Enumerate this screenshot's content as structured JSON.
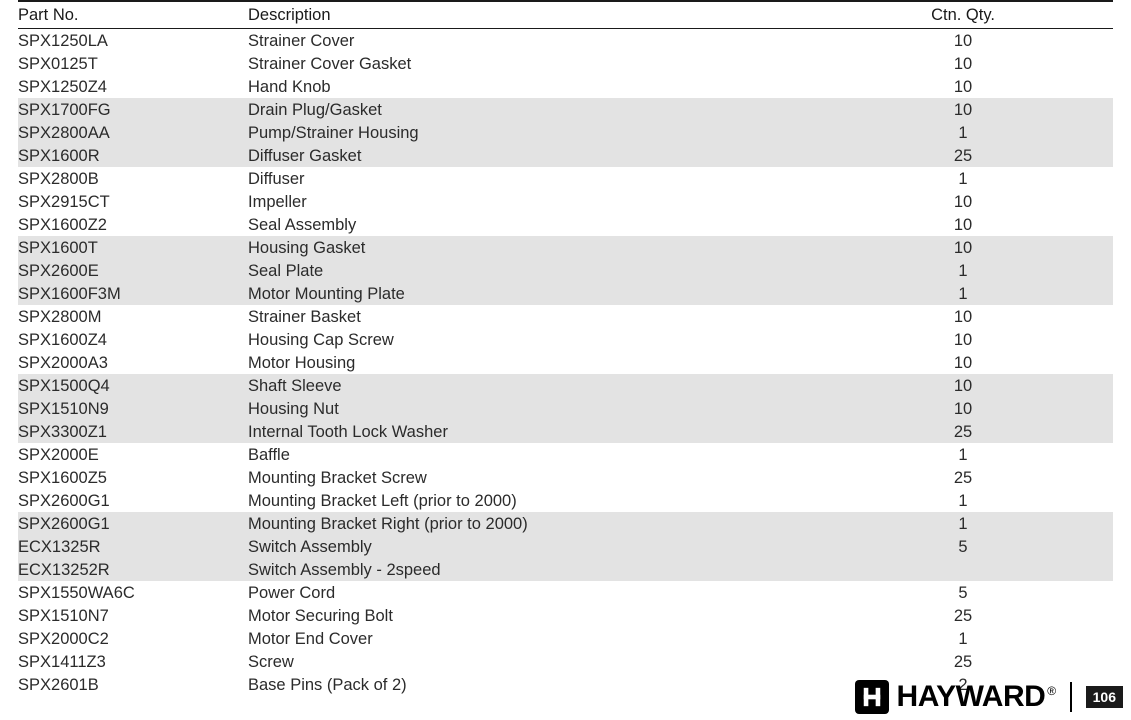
{
  "table": {
    "headers": {
      "part_no": "Part No.",
      "description": "Description",
      "ctn_qty": "Ctn. Qty."
    },
    "shade_color": "#e3e3e3",
    "border_color": "#1a1a1a",
    "text_color": "#2b2b2b",
    "font_size": 16.5,
    "rows": [
      {
        "part_no": "SPX1250LA",
        "description": "Strainer Cover",
        "ctn_qty": "10",
        "shaded": false
      },
      {
        "part_no": "SPX0125T",
        "description": "Strainer Cover Gasket",
        "ctn_qty": "10",
        "shaded": false
      },
      {
        "part_no": "SPX1250Z4",
        "description": "Hand Knob",
        "ctn_qty": "10",
        "shaded": false
      },
      {
        "part_no": "SPX1700FG",
        "description": "Drain Plug/Gasket",
        "ctn_qty": "10",
        "shaded": true
      },
      {
        "part_no": "SPX2800AA",
        "description": "Pump/Strainer Housing",
        "ctn_qty": "1",
        "shaded": true
      },
      {
        "part_no": "SPX1600R",
        "description": "Diffuser Gasket",
        "ctn_qty": "25",
        "shaded": true
      },
      {
        "part_no": "SPX2800B",
        "description": "Diffuser",
        "ctn_qty": "1",
        "shaded": false
      },
      {
        "part_no": "SPX2915CT",
        "description": "Impeller",
        "ctn_qty": "10",
        "shaded": false
      },
      {
        "part_no": "SPX1600Z2",
        "description": "Seal Assembly",
        "ctn_qty": "10",
        "shaded": false
      },
      {
        "part_no": "SPX1600T",
        "description": "Housing Gasket",
        "ctn_qty": "10",
        "shaded": true
      },
      {
        "part_no": "SPX2600E",
        "description": "Seal Plate",
        "ctn_qty": "1",
        "shaded": true
      },
      {
        "part_no": "SPX1600F3M",
        "description": "Motor Mounting Plate",
        "ctn_qty": "1",
        "shaded": true
      },
      {
        "part_no": "SPX2800M",
        "description": "Strainer Basket",
        "ctn_qty": "10",
        "shaded": false
      },
      {
        "part_no": "SPX1600Z4",
        "description": "Housing Cap Screw",
        "ctn_qty": "10",
        "shaded": false
      },
      {
        "part_no": "SPX2000A3",
        "description": "Motor Housing",
        "ctn_qty": "10",
        "shaded": false
      },
      {
        "part_no": "SPX1500Q4",
        "description": "Shaft Sleeve",
        "ctn_qty": "10",
        "shaded": true
      },
      {
        "part_no": "SPX1510N9",
        "description": "Housing Nut",
        "ctn_qty": "10",
        "shaded": true
      },
      {
        "part_no": "SPX3300Z1",
        "description": "Internal Tooth Lock Washer",
        "ctn_qty": "25",
        "shaded": true
      },
      {
        "part_no": "SPX2000E",
        "description": "Baffle",
        "ctn_qty": "1",
        "shaded": false
      },
      {
        "part_no": "SPX1600Z5",
        "description": "Mounting Bracket Screw",
        "ctn_qty": "25",
        "shaded": false
      },
      {
        "part_no": "SPX2600G1",
        "description": "Mounting Bracket Left (prior to 2000)",
        "ctn_qty": "1",
        "shaded": false
      },
      {
        "part_no": "SPX2600G1",
        "description": "Mounting Bracket Right (prior to 2000)",
        "ctn_qty": "1",
        "shaded": true
      },
      {
        "part_no": "ECX1325R",
        "description": "Switch Assembly",
        "ctn_qty": "5",
        "shaded": true
      },
      {
        "part_no": "ECX13252R",
        "description": "Switch Assembly - 2speed",
        "ctn_qty": "",
        "shaded": true
      },
      {
        "part_no": "SPX1550WA6C",
        "description": "Power Cord",
        "ctn_qty": "5",
        "shaded": false
      },
      {
        "part_no": "SPX1510N7",
        "description": "Motor Securing Bolt",
        "ctn_qty": "25",
        "shaded": false
      },
      {
        "part_no": "SPX2000C2",
        "description": "Motor End Cover",
        "ctn_qty": "1",
        "shaded": false
      },
      {
        "part_no": "SPX1411Z3",
        "description": "Screw",
        "ctn_qty": "25",
        "shaded": false
      },
      {
        "part_no": "SPX2601B",
        "description": "Base Pins (Pack of 2)",
        "ctn_qty": "2",
        "shaded": false
      }
    ]
  },
  "footer": {
    "brand_name": "HAYWARD",
    "registered": "®",
    "page_number": "106",
    "brand_icon_bg": "#000000",
    "brand_text_color": "#000000",
    "page_bg": "#1a1a1a",
    "page_fg": "#ffffff"
  }
}
